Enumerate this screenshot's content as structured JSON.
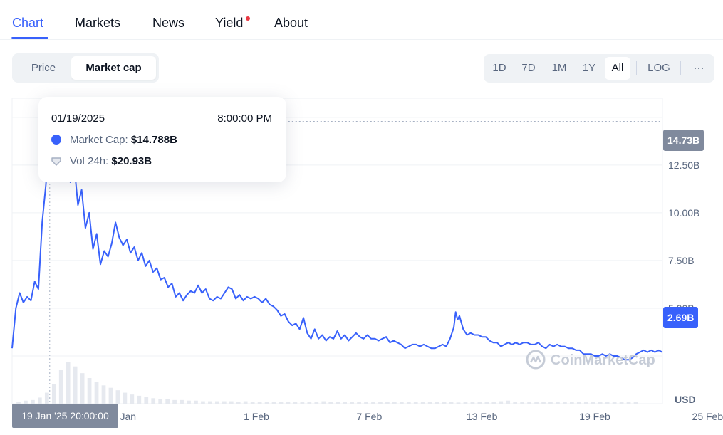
{
  "tabs": [
    {
      "label": "Chart",
      "active": true
    },
    {
      "label": "Markets"
    },
    {
      "label": "News"
    },
    {
      "label": "Yield",
      "badge": true
    },
    {
      "label": "About"
    }
  ],
  "toggle": {
    "items": [
      "Price",
      "Market cap"
    ],
    "selected": "Market cap"
  },
  "ranges": {
    "items": [
      "1D",
      "7D",
      "1M",
      "1Y",
      "All"
    ],
    "selected": "All",
    "log_label": "LOG",
    "more_label": "···"
  },
  "tooltip": {
    "date": "01/19/2025",
    "time": "8:00:00 PM",
    "market_cap_label": "Market Cap:",
    "market_cap_value": "$14.788B",
    "vol_label": "Vol 24h:",
    "vol_value": "$20.93B"
  },
  "crosshair_date_label": "19 Jan '25 20:00:00",
  "current_value_label": "2.69B",
  "hover_value_label": "14.73B",
  "watermark": "CoinMarketCap",
  "currency_label": "USD",
  "colors": {
    "accent": "#3861fb",
    "line": "#3861fb",
    "tag_grey": "#808a9d"
  },
  "chart_data": {
    "type": "line",
    "y_unit": "B",
    "y_ticks": [
      5,
      7.5,
      10,
      12.5
    ],
    "y_tick_labels": [
      "5.00B",
      "7.50B",
      "10.00B",
      "12.50B"
    ],
    "x_tick_labels": [
      "26 Jan",
      "1 Feb",
      "7 Feb",
      "13 Feb",
      "19 Feb",
      "25 Feb"
    ],
    "ylim": [
      0,
      16
    ],
    "grid": true,
    "series": [
      {
        "values": [
          [
            0,
            2.9
          ],
          [
            2,
            5.0
          ],
          [
            4,
            5.8
          ],
          [
            6,
            5.3
          ],
          [
            8,
            5.6
          ],
          [
            10,
            5.4
          ],
          [
            12,
            6.4
          ],
          [
            14,
            6.0
          ],
          [
            16,
            9.5
          ],
          [
            18,
            11.5
          ],
          [
            20,
            14.788
          ],
          [
            21,
            13.8
          ],
          [
            22,
            14.5
          ],
          [
            23,
            12.2
          ],
          [
            25,
            13.2
          ],
          [
            27,
            14.0
          ],
          [
            29,
            12.9
          ],
          [
            31,
            11.6
          ],
          [
            33,
            12.5
          ],
          [
            35,
            10.4
          ],
          [
            37,
            11.2
          ],
          [
            39,
            9.2
          ],
          [
            41,
            10.0
          ],
          [
            43,
            8.1
          ],
          [
            45,
            8.9
          ],
          [
            47,
            7.3
          ],
          [
            49,
            8.0
          ],
          [
            51,
            7.7
          ],
          [
            53,
            8.4
          ],
          [
            55,
            9.5
          ],
          [
            57,
            8.7
          ],
          [
            59,
            8.3
          ],
          [
            61,
            8.6
          ],
          [
            63,
            7.9
          ],
          [
            65,
            8.2
          ],
          [
            67,
            7.5
          ],
          [
            69,
            7.9
          ],
          [
            71,
            7.2
          ],
          [
            73,
            7.5
          ],
          [
            75,
            6.9
          ],
          [
            77,
            7.1
          ],
          [
            79,
            6.5
          ],
          [
            81,
            6.6
          ],
          [
            83,
            6.1
          ],
          [
            85,
            6.3
          ],
          [
            87,
            5.6
          ],
          [
            89,
            5.8
          ],
          [
            91,
            5.4
          ],
          [
            93,
            5.7
          ],
          [
            95,
            5.9
          ],
          [
            97,
            5.8
          ],
          [
            99,
            6.2
          ],
          [
            101,
            5.8
          ],
          [
            103,
            6.0
          ],
          [
            105,
            5.5
          ],
          [
            107,
            5.4
          ],
          [
            109,
            5.6
          ],
          [
            111,
            5.5
          ],
          [
            113,
            5.8
          ],
          [
            115,
            6.1
          ],
          [
            117,
            6.0
          ],
          [
            119,
            5.5
          ],
          [
            121,
            5.7
          ],
          [
            123,
            5.4
          ],
          [
            125,
            5.6
          ],
          [
            127,
            5.5
          ],
          [
            129,
            5.6
          ],
          [
            131,
            5.5
          ],
          [
            133,
            5.3
          ],
          [
            135,
            5.5
          ],
          [
            137,
            5.2
          ],
          [
            139,
            5.1
          ],
          [
            141,
            4.9
          ],
          [
            143,
            4.6
          ],
          [
            145,
            4.7
          ],
          [
            147,
            4.3
          ],
          [
            149,
            4.1
          ],
          [
            151,
            4.2
          ],
          [
            153,
            3.9
          ],
          [
            155,
            4.5
          ],
          [
            157,
            3.7
          ],
          [
            159,
            3.4
          ],
          [
            161,
            3.9
          ],
          [
            163,
            3.4
          ],
          [
            165,
            3.6
          ],
          [
            167,
            3.3
          ],
          [
            169,
            3.5
          ],
          [
            171,
            3.4
          ],
          [
            173,
            3.8
          ],
          [
            175,
            3.4
          ],
          [
            177,
            3.6
          ],
          [
            179,
            3.3
          ],
          [
            181,
            3.5
          ],
          [
            183,
            3.7
          ],
          [
            185,
            3.5
          ],
          [
            187,
            3.4
          ],
          [
            189,
            3.6
          ],
          [
            191,
            3.4
          ],
          [
            193,
            3.4
          ],
          [
            195,
            3.3
          ],
          [
            197,
            3.4
          ],
          [
            199,
            3.5
          ],
          [
            201,
            3.2
          ],
          [
            203,
            3.3
          ],
          [
            205,
            3.2
          ],
          [
            207,
            3.1
          ],
          [
            209,
            2.9
          ],
          [
            211,
            3.0
          ],
          [
            213,
            3.1
          ],
          [
            215,
            3.1
          ],
          [
            217,
            3.0
          ],
          [
            219,
            3.1
          ],
          [
            221,
            3.0
          ],
          [
            223,
            2.9
          ],
          [
            225,
            2.9
          ],
          [
            227,
            3.0
          ],
          [
            229,
            3.1
          ],
          [
            231,
            3.0
          ],
          [
            233,
            3.4
          ],
          [
            235,
            4.0
          ],
          [
            236,
            4.8
          ],
          [
            237,
            4.4
          ],
          [
            238,
            4.6
          ],
          [
            240,
            3.9
          ],
          [
            242,
            3.6
          ],
          [
            244,
            3.7
          ],
          [
            246,
            3.6
          ],
          [
            248,
            3.6
          ],
          [
            250,
            3.5
          ],
          [
            252,
            3.5
          ],
          [
            254,
            3.3
          ],
          [
            256,
            3.2
          ],
          [
            258,
            3.2
          ],
          [
            260,
            3.0
          ],
          [
            262,
            3.1
          ],
          [
            264,
            3.2
          ],
          [
            266,
            3.1
          ],
          [
            268,
            3.2
          ],
          [
            270,
            3.1
          ],
          [
            272,
            3.2
          ],
          [
            274,
            3.2
          ],
          [
            276,
            3.1
          ],
          [
            278,
            3.1
          ],
          [
            280,
            3.2
          ],
          [
            282,
            3.0
          ],
          [
            284,
            2.9
          ],
          [
            286,
            3.1
          ],
          [
            288,
            3.0
          ],
          [
            290,
            3.1
          ],
          [
            292,
            3.0
          ],
          [
            294,
            3.0
          ],
          [
            296,
            2.9
          ],
          [
            298,
            2.9
          ],
          [
            300,
            2.8
          ],
          [
            302,
            2.8
          ],
          [
            304,
            2.6
          ],
          [
            306,
            2.6
          ],
          [
            308,
            2.6
          ],
          [
            310,
            2.5
          ],
          [
            312,
            2.5
          ],
          [
            314,
            2.6
          ],
          [
            316,
            2.5
          ],
          [
            318,
            2.6
          ],
          [
            320,
            2.5
          ],
          [
            322,
            2.5
          ],
          [
            324,
            2.4
          ],
          [
            326,
            2.3
          ],
          [
            328,
            2.3
          ],
          [
            330,
            2.4
          ],
          [
            332,
            2.6
          ],
          [
            334,
            2.7
          ],
          [
            336,
            2.8
          ],
          [
            338,
            2.7
          ],
          [
            340,
            2.8
          ],
          [
            342,
            2.7
          ],
          [
            344,
            2.8
          ],
          [
            346,
            2.69
          ]
        ]
      }
    ],
    "volume": [
      0.3,
      0.5,
      0.6,
      1.0,
      1.8,
      3.2,
      5.5,
      6.8,
      6.1,
      5.0,
      4.2,
      3.5,
      3.0,
      2.6,
      2.2,
      1.8,
      1.5,
      1.3,
      1.1,
      0.9,
      0.8,
      0.7,
      0.6,
      0.6,
      0.5,
      0.5,
      0.4,
      0.4,
      0.4,
      0.4,
      0.4,
      0.3,
      0.4,
      0.3,
      0.3,
      0.3,
      0.3,
      0.3,
      0.3,
      0.3,
      0.3,
      0.3,
      0.3,
      0.4,
      0.3,
      0.3,
      0.3,
      0.3,
      0.3,
      0.3,
      0.3,
      0.3,
      0.3,
      0.3,
      0.3,
      0.3,
      0.3,
      0.3,
      0.3,
      0.3,
      0.3,
      0.3,
      0.2,
      0.3,
      0.3,
      0.3,
      0.3,
      0.3,
      0.4,
      0.5,
      0.3,
      0.3,
      0.3,
      0.3,
      0.3,
      0.3,
      0.3,
      0.3,
      0.3,
      0.3,
      0.3,
      0.3,
      0.3,
      0.3,
      0.3,
      0.3,
      0.3,
      0.3
    ]
  }
}
